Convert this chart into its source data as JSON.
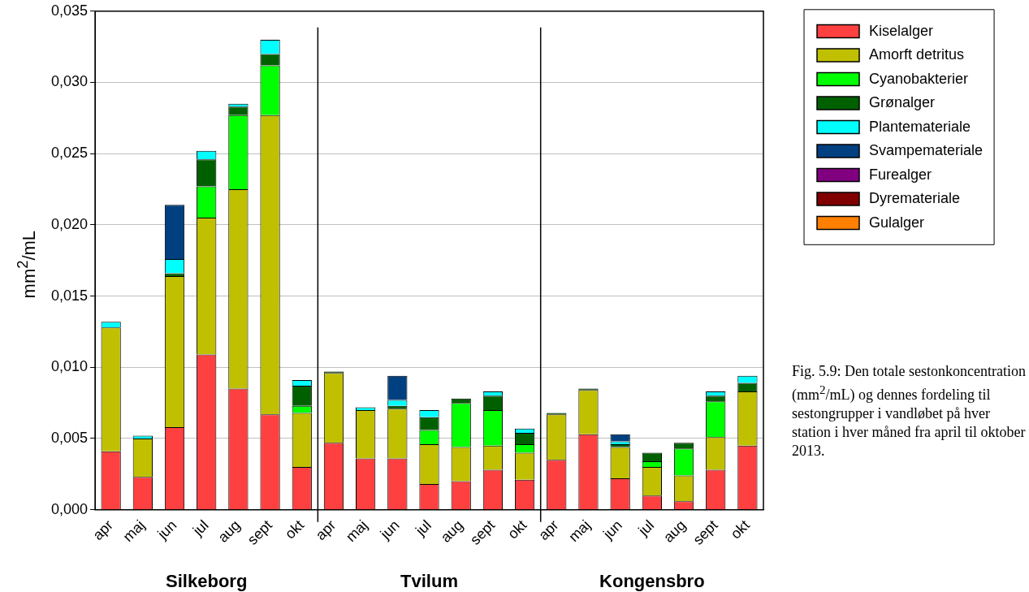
{
  "chart_data": {
    "type": "bar",
    "stacked": true,
    "ylabel": "mm$^{2}$/mL",
    "categories": [
      "apr",
      "maj",
      "jun",
      "jul",
      "aug",
      "sept",
      "okt",
      "apr",
      "maj",
      "jun",
      "jul",
      "aug",
      "sept",
      "okt",
      "apr",
      "maj",
      "jun",
      "jul",
      "aug",
      "sept",
      "okt"
    ],
    "series": [
      {
        "name": "Kiselalger",
        "color": "#ff4040",
        "values": [
          0.0041,
          0.0023,
          0.0058,
          0.0109,
          0.0085,
          0.0067,
          0.003,
          0.0047,
          0.0036,
          0.0036,
          0.0018,
          0.002,
          0.0028,
          0.0021,
          0.0035,
          0.0053,
          0.0022,
          0.001,
          0.0006,
          0.0028,
          0.0045
        ]
      },
      {
        "name": "Amorft detritus",
        "color": "#c0c000",
        "values": [
          0.0087,
          0.0027,
          0.0106,
          0.0096,
          0.014,
          0.021,
          0.0038,
          0.0049,
          0.0034,
          0.0035,
          0.0028,
          0.0024,
          0.0017,
          0.0019,
          0.0032,
          0.0031,
          0.0022,
          0.002,
          0.0018,
          0.0023,
          0.0038
        ]
      },
      {
        "name": "Cyanobakterier",
        "color": "#00ff00",
        "values": [
          0,
          0,
          0,
          0.0022,
          0.0052,
          0.0035,
          0.0005,
          0,
          0,
          0,
          0.001,
          0.0031,
          0.0025,
          0.0006,
          0,
          0,
          0,
          0.0004,
          0.0019,
          0.0025,
          0
        ]
      },
      {
        "name": "Grønalger",
        "color": "#006000",
        "values": [
          0,
          0,
          0.0002,
          0.0019,
          0.0006,
          0.0008,
          0.0014,
          0.0001,
          0,
          0.0002,
          0.0009,
          0.0003,
          0.001,
          0.0008,
          0.0001,
          0.0001,
          0.0002,
          0.0006,
          0.0004,
          0.0004,
          0.0006
        ]
      },
      {
        "name": "Plantemateriale",
        "color": "#00ffff",
        "values": [
          0.0004,
          0.0002,
          0.001,
          0.0006,
          0.0002,
          0.001,
          0.0004,
          0,
          0.0002,
          0.0004,
          0.0005,
          0,
          0.0003,
          0.0003,
          0,
          0,
          0.0002,
          0,
          0,
          0.0003,
          0.0005
        ]
      },
      {
        "name": "Svampemateriale",
        "color": "#004080",
        "values": [
          0,
          0,
          0.0038,
          0,
          0,
          0,
          0,
          0,
          0,
          0.0017,
          0,
          0,
          0,
          0,
          0,
          0,
          0.0005,
          0,
          0,
          0,
          0
        ]
      },
      {
        "name": "Furealger",
        "color": "#800080",
        "values": [
          0,
          0,
          0,
          0,
          0,
          0,
          0,
          0,
          0,
          0,
          0,
          0,
          0,
          0,
          0,
          0,
          0,
          0,
          0,
          0,
          0
        ]
      },
      {
        "name": "Dyremateriale",
        "color": "#800000",
        "values": [
          0,
          0,
          0,
          0,
          0,
          0,
          0,
          0,
          0,
          0,
          0,
          0,
          0,
          0,
          0,
          0,
          0,
          0,
          0,
          0,
          0
        ]
      },
      {
        "name": "Gulalger",
        "color": "#ff8000",
        "values": [
          0,
          0,
          0,
          0,
          0,
          0,
          0,
          0,
          0,
          0,
          0,
          0,
          0,
          0,
          0,
          0,
          0,
          0,
          0,
          0,
          0
        ]
      }
    ],
    "ylim": [
      0,
      0.035
    ],
    "yticks": [
      {
        "value": 0,
        "label": "0,000"
      },
      {
        "value": 0.005,
        "label": "0,005"
      },
      {
        "value": 0.01,
        "label": "0,010"
      },
      {
        "value": 0.015,
        "label": "0,015"
      },
      {
        "value": 0.02,
        "label": "0,020"
      },
      {
        "value": 0.025,
        "label": "0,025"
      },
      {
        "value": 0.03,
        "label": "0,030"
      },
      {
        "value": 0.035,
        "label": "0,035"
      }
    ],
    "grid": "y",
    "legend": "top right",
    "annotations": [
      "Silkeborg",
      "Tvilum",
      "Kongensbro",
      "Fig. 5.9: Den totale sestonkoncentration (mm$^{2}$/mL) og dennes fordeling til sestongrupper i vandløbet på hver station i hver måned fra april til oktober 2013."
    ]
  }
}
